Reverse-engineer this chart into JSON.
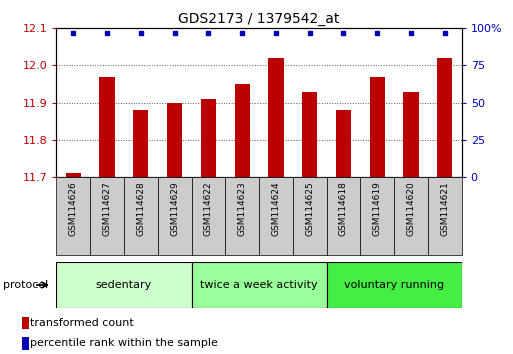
{
  "title": "GDS2173 / 1379542_at",
  "samples": [
    "GSM114626",
    "GSM114627",
    "GSM114628",
    "GSM114629",
    "GSM114622",
    "GSM114623",
    "GSM114624",
    "GSM114625",
    "GSM114618",
    "GSM114619",
    "GSM114620",
    "GSM114621"
  ],
  "transformed_counts": [
    11.71,
    11.97,
    11.88,
    11.9,
    11.91,
    11.95,
    12.02,
    11.93,
    11.88,
    11.97,
    11.93,
    12.02
  ],
  "bar_color": "#bb0000",
  "dot_color": "#0000bb",
  "ylim_left": [
    11.7,
    12.1
  ],
  "ylim_right": [
    0,
    100
  ],
  "yticks_left": [
    11.7,
    11.8,
    11.9,
    12.0,
    12.1
  ],
  "yticks_right": [
    0,
    25,
    50,
    75,
    100
  ],
  "protocols": [
    {
      "label": "sedentary",
      "start": 0,
      "end": 4,
      "color": "#ccffcc"
    },
    {
      "label": "twice a week activity",
      "start": 4,
      "end": 8,
      "color": "#99ff99"
    },
    {
      "label": "voluntary running",
      "start": 8,
      "end": 12,
      "color": "#44ee44"
    }
  ],
  "protocol_label": "protocol",
  "legend_bar_label": "transformed count",
  "legend_dot_label": "percentile rank within the sample",
  "background_color": "#ffffff",
  "grid_color": "#555555",
  "sample_box_color": "#cccccc",
  "title_fontsize": 10,
  "tick_fontsize": 8,
  "sample_fontsize": 6.5,
  "legend_fontsize": 8,
  "protocol_fontsize": 8,
  "bar_width": 0.45
}
